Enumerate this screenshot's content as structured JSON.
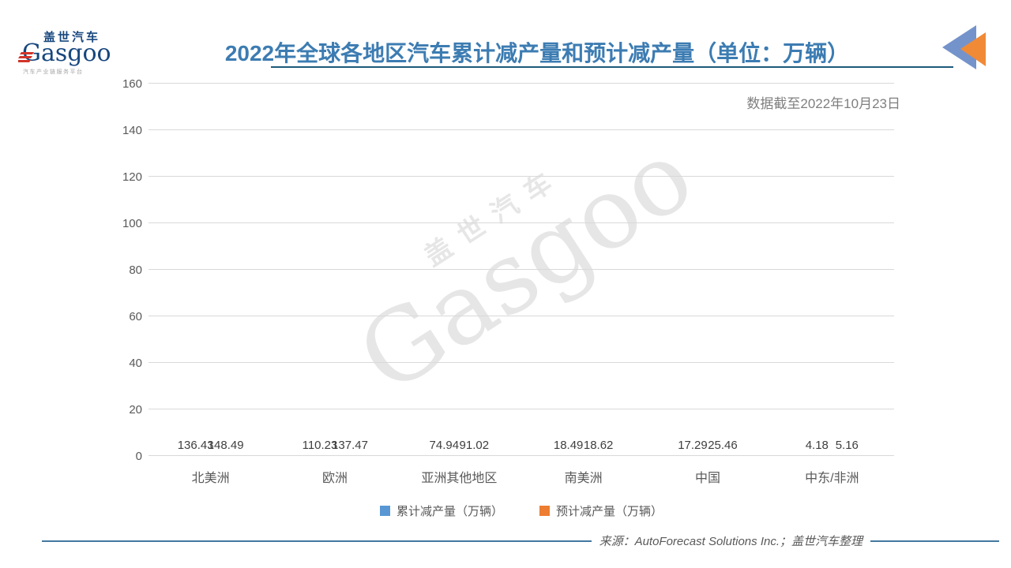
{
  "logo": {
    "cn": "盖世汽车",
    "en": "Gasgoo",
    "tagline": "汽车产业链服务平台"
  },
  "header": {
    "title": "2022年全球各地区汽车累计减产量和预计减产量（单位：万辆）",
    "note": "数据截至2022年10月23日"
  },
  "watermark": {
    "cn": "盖世汽车",
    "en": "Gasgoo"
  },
  "chart_data": {
    "type": "bar",
    "title": "2022年全球各地区汽车累计减产量和预计减产量（单位：万辆）",
    "categories": [
      "北美洲",
      "欧洲",
      "亚洲其他地区",
      "南美洲",
      "中国",
      "中东/非洲"
    ],
    "series": [
      {
        "name": "累计减产量（万辆）",
        "color": "#5897D3",
        "values": [
          136.43,
          110.23,
          74.94,
          18.49,
          17.29,
          4.18
        ]
      },
      {
        "name": "预计减产量（万辆）",
        "color": "#ED7D31",
        "values": [
          148.49,
          137.47,
          91.02,
          18.62,
          25.46,
          5.16
        ]
      }
    ],
    "xlabel": "",
    "ylabel": "",
    "ylim": [
      0,
      160
    ],
    "ytick_step": 20,
    "grid": true,
    "legend_position": "bottom"
  },
  "footer": {
    "source": "来源：AutoForecast Solutions Inc.；盖世汽车整理"
  },
  "colors": {
    "title": "#3C7CB2",
    "title_underline": "#1D5A7B",
    "gridline": "#D9D9D9",
    "axis_text": "#595959",
    "note_text": "#7F7F7F",
    "corner_arrow_blue": "#7493CB",
    "corner_arrow_orange": "#F08A37",
    "logo_navy": "#17477E",
    "logo_red": "#D2342A"
  }
}
